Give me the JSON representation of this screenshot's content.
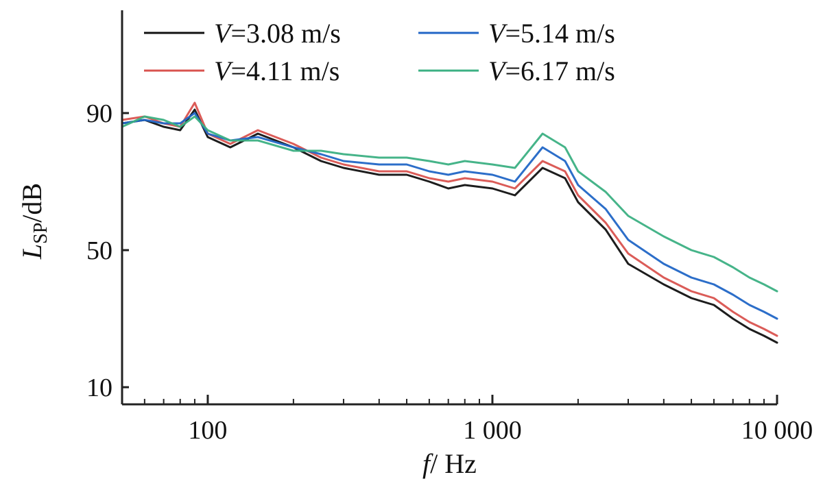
{
  "chart_data": {
    "type": "line",
    "xscale": "log",
    "xlim": [
      50,
      10000
    ],
    "ylim": [
      5,
      120
    ],
    "xlabel": {
      "italic": "f",
      "rest": "/ Hz"
    },
    "ylabel": {
      "italic": "L",
      "sub": "SP",
      "rest": "/dB"
    },
    "xticks": [
      {
        "value": 100,
        "label": "100"
      },
      {
        "value": 1000,
        "label": "1 000"
      },
      {
        "value": 10000,
        "label": "10 000"
      }
    ],
    "yticks": [
      {
        "value": 10,
        "label": "10"
      },
      {
        "value": 50,
        "label": "50"
      },
      {
        "value": 90,
        "label": "90"
      }
    ],
    "grid": false,
    "legend_position": "top",
    "series": [
      {
        "name": "V=3.08 m/s",
        "legend_italic": "V",
        "legend_rest": "=3.08 m/s",
        "color": "#111111",
        "values": [
          [
            50,
            87
          ],
          [
            60,
            88
          ],
          [
            70,
            86
          ],
          [
            80,
            85
          ],
          [
            90,
            91
          ],
          [
            100,
            83
          ],
          [
            120,
            80
          ],
          [
            150,
            84
          ],
          [
            200,
            80
          ],
          [
            250,
            76
          ],
          [
            300,
            74
          ],
          [
            400,
            72
          ],
          [
            500,
            72
          ],
          [
            600,
            70
          ],
          [
            700,
            68
          ],
          [
            800,
            69
          ],
          [
            1000,
            68
          ],
          [
            1200,
            66
          ],
          [
            1500,
            74
          ],
          [
            1800,
            71
          ],
          [
            2000,
            64
          ],
          [
            2500,
            56
          ],
          [
            3000,
            46
          ],
          [
            4000,
            40
          ],
          [
            5000,
            36
          ],
          [
            6000,
            34
          ],
          [
            7000,
            30
          ],
          [
            8000,
            27
          ],
          [
            9000,
            25
          ],
          [
            10000,
            23
          ]
        ]
      },
      {
        "name": "V=4.11 m/s",
        "legend_italic": "V",
        "legend_rest": "=4.11 m/s",
        "color": "#d9534f",
        "values": [
          [
            50,
            88
          ],
          [
            60,
            89
          ],
          [
            70,
            87
          ],
          [
            80,
            86
          ],
          [
            90,
            93
          ],
          [
            100,
            84
          ],
          [
            120,
            81
          ],
          [
            150,
            85
          ],
          [
            200,
            81
          ],
          [
            250,
            77
          ],
          [
            300,
            75
          ],
          [
            400,
            73
          ],
          [
            500,
            73
          ],
          [
            600,
            71
          ],
          [
            700,
            70
          ],
          [
            800,
            71
          ],
          [
            1000,
            70
          ],
          [
            1200,
            68
          ],
          [
            1500,
            76
          ],
          [
            1800,
            73
          ],
          [
            2000,
            66
          ],
          [
            2500,
            58
          ],
          [
            3000,
            49
          ],
          [
            4000,
            42
          ],
          [
            5000,
            38
          ],
          [
            6000,
            36
          ],
          [
            7000,
            32
          ],
          [
            8000,
            29
          ],
          [
            9000,
            27
          ],
          [
            10000,
            25
          ]
        ]
      },
      {
        "name": "V=5.14 m/s",
        "legend_italic": "V",
        "legend_rest": "=5.14 m/s",
        "color": "#2166c6",
        "values": [
          [
            50,
            87
          ],
          [
            60,
            88
          ],
          [
            70,
            87
          ],
          [
            80,
            87
          ],
          [
            90,
            90
          ],
          [
            100,
            84
          ],
          [
            120,
            82
          ],
          [
            150,
            83
          ],
          [
            200,
            80
          ],
          [
            250,
            78
          ],
          [
            300,
            76
          ],
          [
            400,
            75
          ],
          [
            500,
            75
          ],
          [
            600,
            73
          ],
          [
            700,
            72
          ],
          [
            800,
            73
          ],
          [
            1000,
            72
          ],
          [
            1200,
            70
          ],
          [
            1500,
            80
          ],
          [
            1800,
            76
          ],
          [
            2000,
            69
          ],
          [
            2500,
            62
          ],
          [
            3000,
            53
          ],
          [
            4000,
            46
          ],
          [
            5000,
            42
          ],
          [
            6000,
            40
          ],
          [
            7000,
            37
          ],
          [
            8000,
            34
          ],
          [
            9000,
            32
          ],
          [
            10000,
            30
          ]
        ]
      },
      {
        "name": "V=6.17 m/s",
        "legend_italic": "V",
        "legend_rest": "=6.17 m/s",
        "color": "#3cb083",
        "values": [
          [
            50,
            86
          ],
          [
            60,
            89
          ],
          [
            70,
            88
          ],
          [
            80,
            86
          ],
          [
            90,
            89
          ],
          [
            100,
            85
          ],
          [
            120,
            82
          ],
          [
            150,
            82
          ],
          [
            200,
            79
          ],
          [
            250,
            79
          ],
          [
            300,
            78
          ],
          [
            400,
            77
          ],
          [
            500,
            77
          ],
          [
            600,
            76
          ],
          [
            700,
            75
          ],
          [
            800,
            76
          ],
          [
            1000,
            75
          ],
          [
            1200,
            74
          ],
          [
            1500,
            84
          ],
          [
            1800,
            80
          ],
          [
            2000,
            73
          ],
          [
            2500,
            67
          ],
          [
            3000,
            60
          ],
          [
            4000,
            54
          ],
          [
            5000,
            50
          ],
          [
            6000,
            48
          ],
          [
            7000,
            45
          ],
          [
            8000,
            42
          ],
          [
            9000,
            40
          ],
          [
            10000,
            38
          ]
        ]
      }
    ]
  }
}
